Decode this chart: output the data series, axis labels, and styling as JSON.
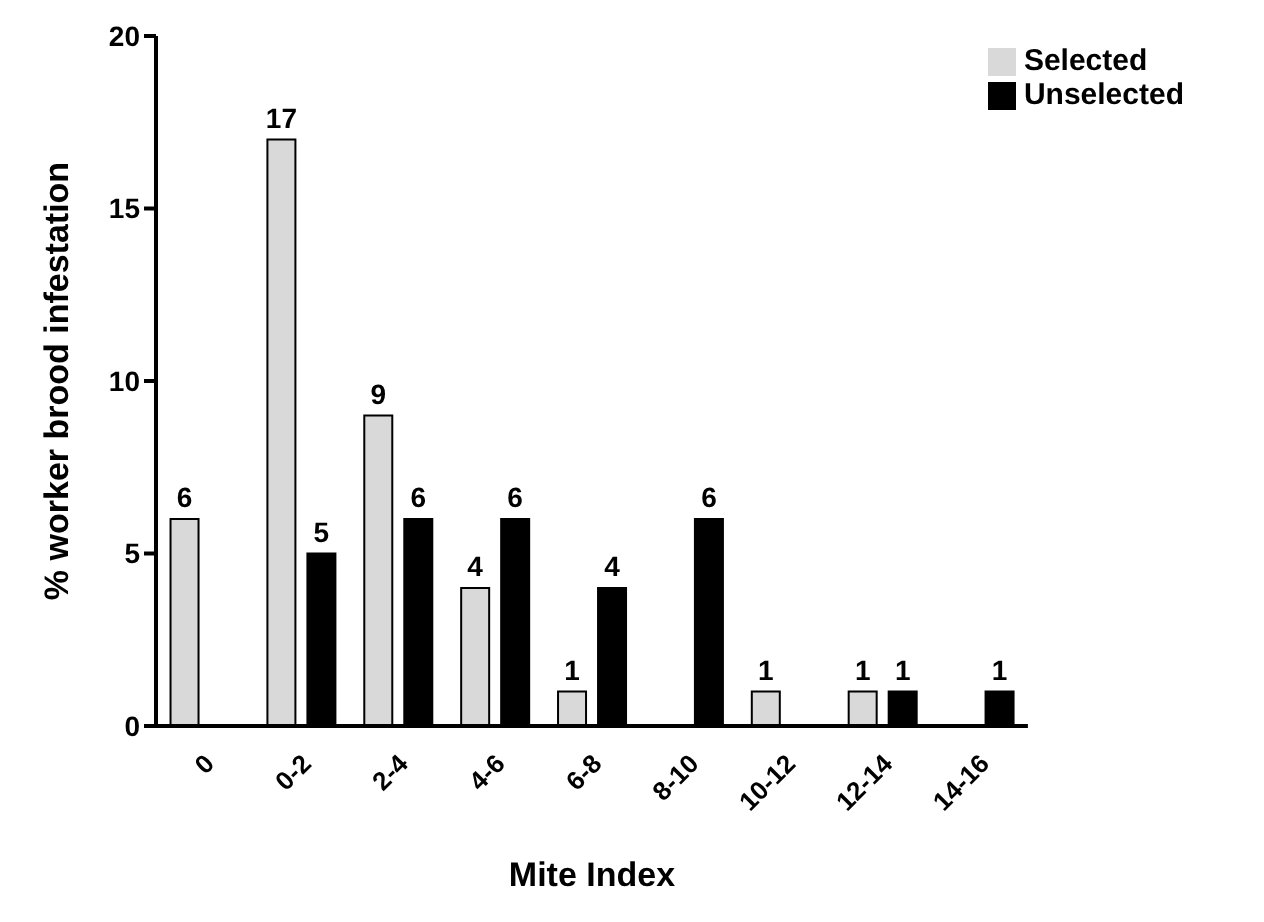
{
  "chart_data": {
    "type": "bar",
    "xlabel": "Mite Index",
    "ylabel": "% worker brood  infestation",
    "categories": [
      "0",
      "0-2",
      "2-4",
      "4-6",
      "6-8",
      "8-10",
      "10-12",
      "12-14",
      "14-16"
    ],
    "series": [
      {
        "name": "Selected",
        "color": "#d9d9d9",
        "values": [
          6,
          17,
          9,
          4,
          1,
          null,
          1,
          1,
          null
        ]
      },
      {
        "name": "Unselected",
        "color": "#000000",
        "values": [
          null,
          5,
          6,
          6,
          4,
          6,
          null,
          1,
          1
        ]
      }
    ],
    "ylim": [
      0,
      20
    ],
    "yticks": [
      0,
      5,
      10,
      15,
      20
    ],
    "grid": false,
    "legend": "top right",
    "data_labels": true
  }
}
